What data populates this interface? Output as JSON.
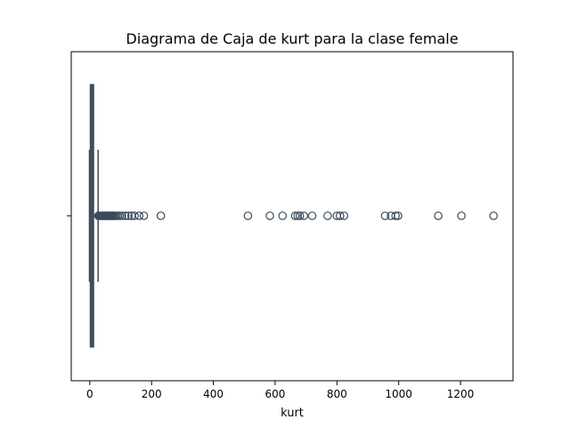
{
  "chart_data": {
    "type": "box",
    "orientation": "horizontal",
    "title": "Diagrama de Caja de kurt para la clase female",
    "xlabel": "kurt",
    "ylabel": "",
    "xlim": [
      -60,
      1370
    ],
    "xticks": [
      0,
      200,
      400,
      600,
      800,
      1000,
      1200
    ],
    "grid": false,
    "box": {
      "q1": 2,
      "median": 8,
      "q3": 12,
      "whisker_low": -1,
      "whisker_high": 27,
      "color": "#3b4a5a"
    },
    "outliers": [
      28,
      31,
      34,
      37,
      40,
      43,
      46,
      49,
      52,
      55,
      58,
      61,
      64,
      67,
      70,
      73,
      76,
      80,
      85,
      90,
      97,
      104,
      115,
      125,
      135,
      145,
      160,
      175,
      230,
      512,
      583,
      624,
      665,
      673,
      680,
      693,
      720,
      770,
      800,
      810,
      823,
      956,
      975,
      990,
      998,
      1128,
      1203,
      1307
    ]
  }
}
